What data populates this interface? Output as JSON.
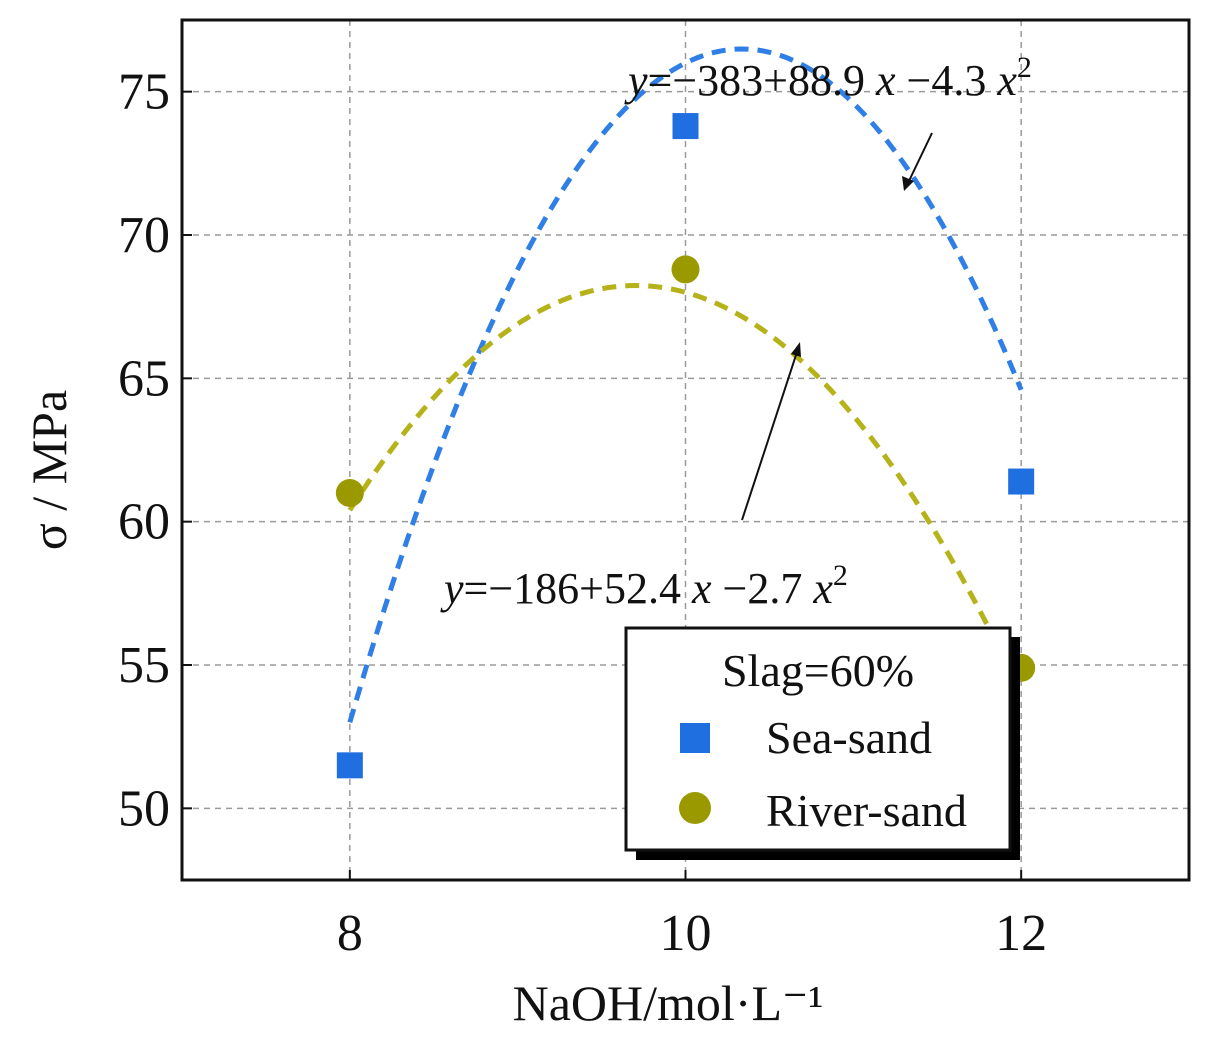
{
  "chart_data": {
    "type": "scatter",
    "title": "",
    "xlabel": "NaOH/mol·L⁻¹",
    "ylabel": "σ / MPa",
    "xlim": [
      7,
      13
    ],
    "ylim": [
      47.5,
      77.5
    ],
    "xticks": [
      8,
      10,
      12
    ],
    "yticks": [
      50,
      55,
      60,
      65,
      70,
      75
    ],
    "grid": true,
    "series": [
      {
        "name": "Sea-sand",
        "marker": "square",
        "color": "#1f6fe0",
        "x": [
          8,
          10,
          12
        ],
        "y": [
          51.5,
          73.8,
          61.4
        ],
        "fit": {
          "a": -383,
          "b": 88.9,
          "c": -4.3,
          "curve_color": "#2f7fe6"
        },
        "equation": {
          "prefix": "y",
          "body": "=−383+88.9 ",
          "x1": "x",
          "mid": " −4.3 ",
          "x2": "x",
          "exp": "2"
        }
      },
      {
        "name": "River-sand",
        "marker": "circle",
        "color": "#9a9a00",
        "x": [
          8,
          10,
          12
        ],
        "y": [
          61.0,
          68.8,
          54.9
        ],
        "fit": {
          "a": -186,
          "b": 52.4,
          "c": -2.7,
          "curve_color": "#b5b21a"
        },
        "equation": {
          "prefix": "y",
          "body": "=−186+52.4 ",
          "x1": "x",
          "mid": " −2.7 ",
          "x2": "x",
          "exp": "2"
        }
      }
    ],
    "legend": {
      "title": "Slag=60%",
      "placement": "bottom-right"
    }
  }
}
